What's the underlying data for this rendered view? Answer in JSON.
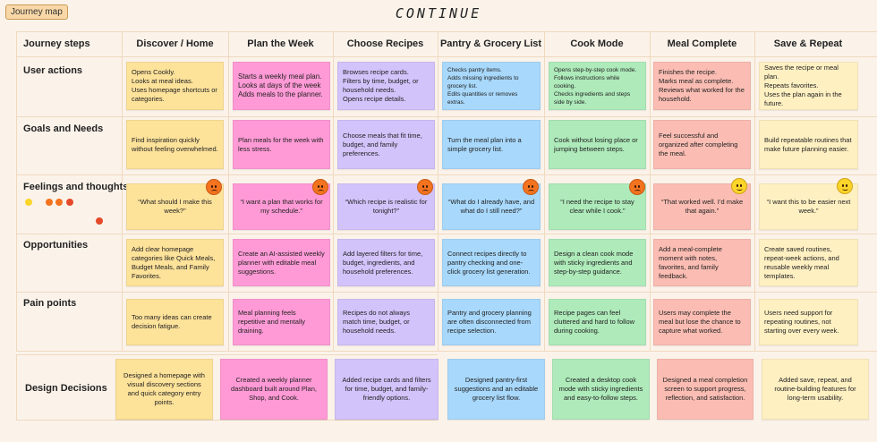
{
  "tag_label": "Journey map",
  "page_title": "CONTINUE",
  "columns": [
    "Journey steps",
    "Discover / Home",
    "Plan the Week",
    "Choose Recipes",
    "Pantry & Grocery List",
    "Cook Mode",
    "Meal Complete",
    "Save & Repeat"
  ],
  "rows": [
    "User actions",
    "Goals and Needs",
    "Feelings and thoughts",
    "Opportunities",
    "Pain points"
  ],
  "design_label": "Design Decisions",
  "user_actions": [
    "Opens Cookly.\nLooks at meal ideas.\nUses homepage shortcuts or categories.",
    "Starts a weekly meal plan.\nLooks at days of the week\nAdds meals to the planner.",
    "Browses recipe cards.\nFilters by time, budget, or household needs.\nOpens recipe details.",
    "Checks pantry items.\nAdds missing ingredients to grocery list.\nEdits quantities or removes extras.",
    "Opens step-by-step cook mode.\nFollows instructions while cooking.\nChecks ingredients and steps side by side.",
    "Finishes the recipe.\nMarks meal as complete.\nReviews what worked for the household.",
    "Saves the recipe or meal plan.\nRepeats favorites.\nUses the plan again in the future."
  ],
  "goals": [
    "Find inspiration quickly without feeling overwhelmed.",
    "Plan meals for the week with less stress.",
    "Choose meals that fit time, budget, and family preferences.",
    "Turn the meal plan into a simple grocery list.",
    "Cook without losing place or jumping between steps.",
    "Feel successful and organized after completing the meal.",
    "Build repeatable routines that make future planning easier."
  ],
  "feelings": [
    {
      "text": "“What should I make this week?”",
      "mood": "sad"
    },
    {
      "text": "“I want a plan that works for my schedule.”",
      "mood": "sad"
    },
    {
      "text": "“Which recipe is realistic for tonight?”",
      "mood": "sad"
    },
    {
      "text": "“What do I already have, and what do I still need?”",
      "mood": "sad"
    },
    {
      "text": "“I need the recipe to stay clear while I cook.”",
      "mood": "sad"
    },
    {
      "text": "“That worked well. I’d make that again.”",
      "mood": "happy"
    },
    {
      "text": "“I want this to be easier next week.”",
      "mood": "happy"
    }
  ],
  "opportunities": [
    "Add clear homepage categories like Quick Meals, Budget Meals, and Family Favorites.",
    "Create an AI-assisted weekly planner with editable meal suggestions.",
    "Add layered filters for time, budget, ingredients, and household preferences.",
    "Connect recipes directly to pantry checking and one-click grocery list generation.",
    "Design a clean cook mode with sticky ingredients and step-by-step guidance.",
    "Add a meal-complete moment with notes, favorites, and family feedback.",
    "Create saved routines, repeat-week actions, and reusable weekly meal templates."
  ],
  "pain_points": [
    "Too many ideas can create decision fatigue.",
    "Meal planning feels repetitive and mentally draining.",
    "Recipes do not always match time, budget, or household needs.",
    "Pantry and grocery planning are often disconnected from recipe selection.",
    "Recipe pages can feel cluttered and hard to follow during cooking.",
    "Users may complete the meal but lose the chance to capture what worked.",
    "Users need support for repeating routines, not starting over every week."
  ],
  "design_decisions": [
    "Designed a homepage with visual discovery sections and quick category entry points.",
    "Created a weekly planner dashboard built around Plan, Shop, and Cook.",
    "Added recipe cards and filters for time, budget, and family-friendly options.",
    "Designed pantry-first suggestions and an editable grocery list flow.",
    "Created a desktop cook mode with sticky ingredients and easy-to-follow steps.",
    "Designed a meal completion screen to support progress, reflection, and satisfaction.",
    "Added save, repeat, and routine-building features for long-term usability."
  ],
  "colors": [
    "#fde29a",
    "#ff9ad6",
    "#d3c3fb",
    "#a8d8fb",
    "#aeeaba",
    "#fbbdb3",
    "#fff0c2"
  ]
}
